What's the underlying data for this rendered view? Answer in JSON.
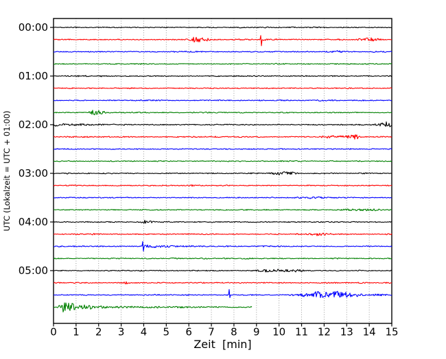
{
  "chart_data": {
    "type": "line",
    "subtype": "helicorder-seismogram",
    "title": "",
    "xlabel": "Zeit  [min]",
    "ylabel": "UTC (Lokalzeit = UTC + 01:00)",
    "xlim": [
      0,
      15
    ],
    "minutes_per_line": 15,
    "x_ticks": [
      0,
      1,
      2,
      3,
      4,
      5,
      6,
      7,
      8,
      9,
      10,
      11,
      12,
      13,
      14,
      15
    ],
    "y_tick_labels": [
      "00:00",
      "01:00",
      "02:00",
      "03:00",
      "04:00",
      "05:00"
    ],
    "grid": {
      "vertical_dotted": true,
      "color": "#8c8c8c"
    },
    "colors": {
      "black": "#000000",
      "red": "#ff0000",
      "blue": "#0000ff",
      "green": "#008000"
    },
    "legend": null,
    "traces": [
      {
        "label": "00:00",
        "color": "black",
        "end": 15,
        "events": []
      },
      {
        "label": "00:15",
        "color": "red",
        "end": 15,
        "events": [
          {
            "kind": "burst",
            "t": 6.25,
            "amp": 3.2,
            "w": 0.18
          },
          {
            "kind": "burst",
            "t": 6.6,
            "amp": 2.0,
            "w": 0.3
          },
          {
            "kind": "spike",
            "t": 9.2,
            "up": 6,
            "dn": 9
          },
          {
            "kind": "decay",
            "t": 9.25,
            "amp": 1.8,
            "w": 0.5
          },
          {
            "kind": "burst",
            "t": 13.85,
            "amp": 2.4,
            "w": 0.35
          }
        ]
      },
      {
        "label": "00:30",
        "color": "blue",
        "end": 15,
        "events": [
          {
            "kind": "burst",
            "t": 12.4,
            "amp": 1.2,
            "w": 0.35
          }
        ]
      },
      {
        "label": "00:45",
        "color": "green",
        "end": 15,
        "events": []
      },
      {
        "label": "01:00",
        "color": "black",
        "end": 15,
        "events": []
      },
      {
        "label": "01:15",
        "color": "red",
        "end": 15,
        "events": []
      },
      {
        "label": "01:30",
        "color": "blue",
        "end": 15,
        "events": []
      },
      {
        "label": "01:45",
        "color": "green",
        "end": 15,
        "events": [
          {
            "kind": "burst",
            "t": 1.85,
            "amp": 3.5,
            "w": 0.3
          }
        ]
      },
      {
        "label": "02:00",
        "color": "black",
        "end": 15,
        "events": [
          {
            "kind": "decay",
            "t": 0,
            "amp": 2.2,
            "w": 1.1
          },
          {
            "kind": "burst",
            "t": 14.65,
            "amp": 3.8,
            "w": 0.3
          }
        ]
      },
      {
        "label": "02:15",
        "color": "red",
        "end": 15,
        "events": [
          {
            "kind": "level",
            "t0": 11.7,
            "t1": 13.6,
            "amp": 1.5
          },
          {
            "kind": "burst",
            "t": 13.4,
            "amp": 2.2,
            "w": 0.2
          }
        ]
      },
      {
        "label": "02:30",
        "color": "blue",
        "end": 15,
        "events": []
      },
      {
        "label": "02:45",
        "color": "green",
        "end": 15,
        "events": []
      },
      {
        "label": "03:00",
        "color": "black",
        "end": 15,
        "events": [
          {
            "kind": "level",
            "t0": 9.5,
            "t1": 10.9,
            "amp": 1.6
          }
        ]
      },
      {
        "label": "03:15",
        "color": "red",
        "end": 15,
        "events": []
      },
      {
        "label": "03:30",
        "color": "blue",
        "end": 15,
        "events": [
          {
            "kind": "burst",
            "t": 11.5,
            "amp": 1.2,
            "w": 0.4
          }
        ]
      },
      {
        "label": "03:45",
        "color": "green",
        "end": 15,
        "events": [
          {
            "kind": "level",
            "t0": 12.5,
            "t1": 14.5,
            "amp": 0.9
          }
        ]
      },
      {
        "label": "04:00",
        "color": "black",
        "end": 15,
        "events": [
          {
            "kind": "burst",
            "t": 4.05,
            "amp": 2.2,
            "w": 0.22
          }
        ]
      },
      {
        "label": "04:15",
        "color": "red",
        "end": 15,
        "events": [
          {
            "kind": "burst",
            "t": 11.7,
            "amp": 1.8,
            "w": 0.4
          }
        ]
      },
      {
        "label": "04:30",
        "color": "blue",
        "end": 15,
        "events": [
          {
            "kind": "spike",
            "t": 3.95,
            "up": 7,
            "dn": 7
          },
          {
            "kind": "decay",
            "t": 4.0,
            "amp": 1.8,
            "w": 1.3
          }
        ]
      },
      {
        "label": "04:45",
        "color": "green",
        "end": 15,
        "events": []
      },
      {
        "label": "05:00",
        "color": "black",
        "end": 15,
        "events": [
          {
            "kind": "level",
            "t0": 9.0,
            "t1": 11.3,
            "amp": 1.4
          }
        ]
      },
      {
        "label": "05:15",
        "color": "red",
        "end": 15,
        "events": [
          {
            "kind": "burst",
            "t": 3.2,
            "amp": 1.4,
            "w": 0.15
          }
        ]
      },
      {
        "label": "05:30",
        "color": "blue",
        "end": 15,
        "events": [
          {
            "kind": "spike",
            "t": 7.8,
            "up": 8,
            "dn": 4
          },
          {
            "kind": "level",
            "t0": 10.4,
            "t1": 13.9,
            "amp": 2.0
          },
          {
            "kind": "burst",
            "t": 11.7,
            "amp": 2.6,
            "w": 0.35
          },
          {
            "kind": "burst",
            "t": 12.6,
            "amp": 3.0,
            "w": 0.3
          },
          {
            "kind": "level",
            "t0": 13.9,
            "t1": 15,
            "amp": 1.0
          }
        ]
      },
      {
        "label": "05:45",
        "color": "green",
        "end": 8.8,
        "events": [
          {
            "kind": "burst",
            "t": 0.45,
            "amp": 7.5,
            "w": 0.22
          },
          {
            "kind": "burst",
            "t": 0.85,
            "amp": 3.2,
            "w": 0.28
          },
          {
            "kind": "burst",
            "t": 1.3,
            "amp": 2.8,
            "w": 0.2
          },
          {
            "kind": "burst",
            "t": 1.7,
            "amp": 2.2,
            "w": 0.18
          },
          {
            "kind": "decay",
            "t": 2.0,
            "amp": 1.2,
            "w": 2.5
          }
        ]
      }
    ]
  }
}
